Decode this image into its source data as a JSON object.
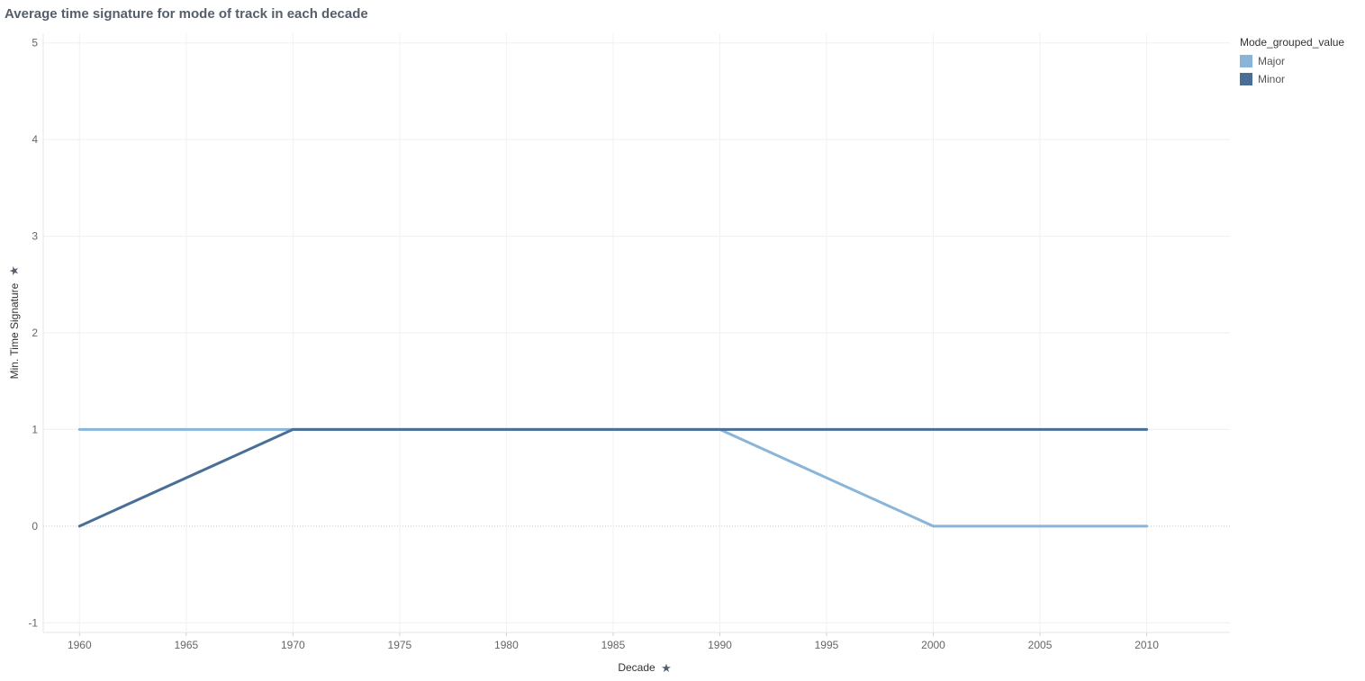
{
  "title": "Average time signature for mode of track in each decade",
  "legend": {
    "title": "Mode_grouped_value",
    "items": [
      {
        "label": "Major",
        "color": "#88b5d9"
      },
      {
        "label": "Minor",
        "color": "#4a6f96"
      }
    ]
  },
  "pin_icon": "pin-icon",
  "chart_data": {
    "type": "line",
    "title": "Average time signature for mode of track in each decade",
    "xlabel": "Decade",
    "ylabel": "Min. Time Signature",
    "xlim": [
      1958.3,
      2013.9
    ],
    "ylim": [
      -1.1,
      5.1
    ],
    "x_ticks": [
      1960,
      1965,
      1970,
      1975,
      1980,
      1985,
      1990,
      1995,
      2000,
      2005,
      2010
    ],
    "y_ticks": [
      -1,
      0,
      1,
      2,
      3,
      4,
      5
    ],
    "grid": true,
    "legend_position": "top-right",
    "x": [
      1960,
      1970,
      1980,
      1990,
      2000,
      2010
    ],
    "series": [
      {
        "name": "Major",
        "color": "#88b5d9",
        "values": [
          1,
          1,
          1,
          1,
          0,
          0
        ]
      },
      {
        "name": "Minor",
        "color": "#4a6f96",
        "values": [
          0,
          1,
          1,
          1,
          1,
          1
        ]
      }
    ]
  }
}
